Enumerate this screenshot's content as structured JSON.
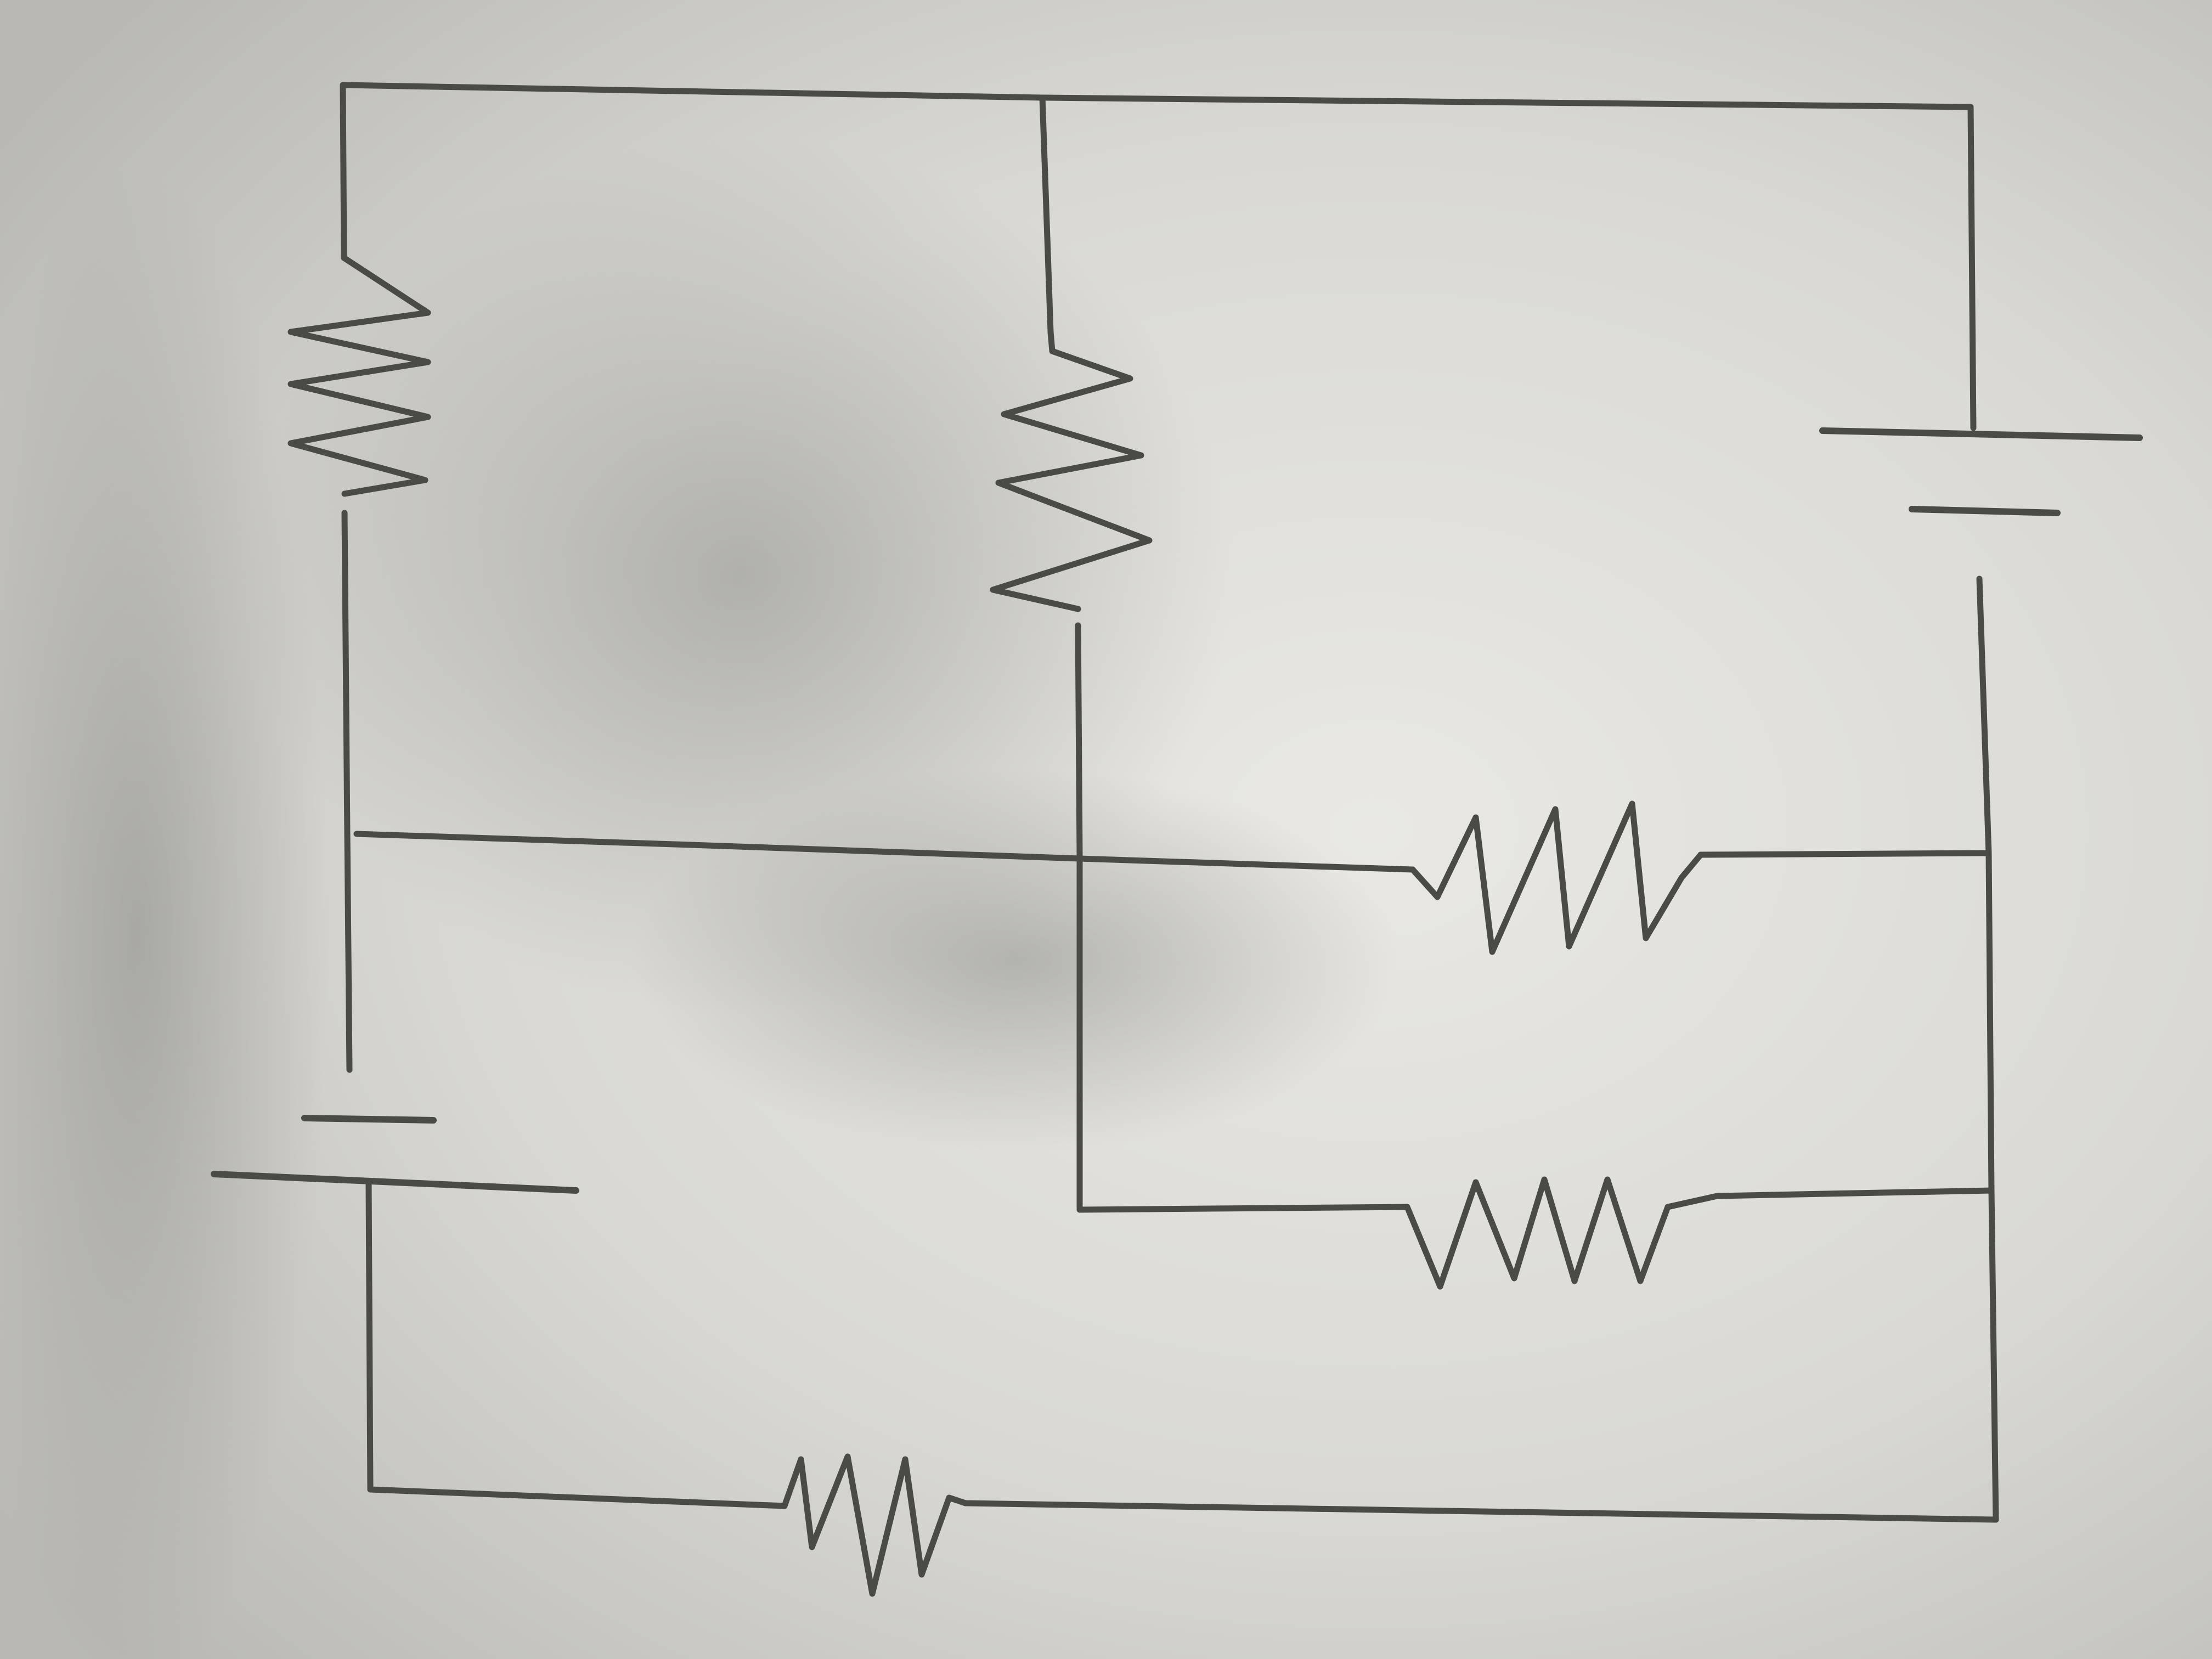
{
  "diagram": {
    "type": "circuit-schematic",
    "medium": "pencil on paper",
    "components": [
      {
        "id": "R1",
        "kind": "resistor",
        "orientation": "vertical"
      },
      {
        "id": "R2",
        "kind": "resistor",
        "orientation": "vertical"
      },
      {
        "id": "R3",
        "kind": "resistor",
        "orientation": "horizontal"
      },
      {
        "id": "R4",
        "kind": "resistor",
        "orientation": "horizontal"
      },
      {
        "id": "R5",
        "kind": "resistor",
        "orientation": "horizontal"
      },
      {
        "id": "B1",
        "kind": "battery"
      },
      {
        "id": "B2",
        "kind": "battery"
      }
    ],
    "colors": {
      "ink": "#4a4a47",
      "paper_light": "#e9e8e4",
      "paper_shadow": "#a9a9a5"
    }
  }
}
